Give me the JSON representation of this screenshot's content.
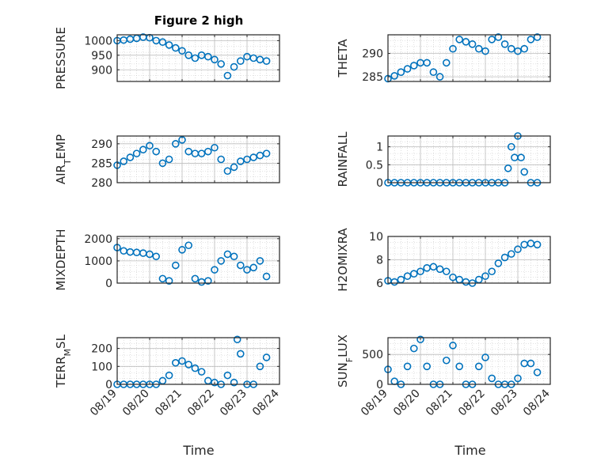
{
  "figure": {
    "title": "Figure 2 high",
    "x_axis_label": "Time",
    "x_tick_labels": [
      "08/19",
      "08/20",
      "08/21",
      "08/22",
      "08/23",
      "08/24"
    ]
  },
  "colors": {
    "marker": "#0072BD",
    "axis": "#262626",
    "grid": "#c8c8c8"
  },
  "chart_data": [
    {
      "type": "scatter",
      "ylabel": "PRESSURE",
      "xlim": [
        0,
        5
      ],
      "ylim": [
        860,
        1020
      ],
      "yticks": [
        900,
        950,
        1000
      ],
      "grid": true,
      "title": "Figure 2 high",
      "x_tick_labels_visible": false,
      "x": [
        0.0,
        0.2,
        0.4,
        0.6,
        0.8,
        1.0,
        1.2,
        1.4,
        1.6,
        1.8,
        2.0,
        2.2,
        2.4,
        2.6,
        2.8,
        3.0,
        3.2,
        3.4,
        3.6,
        3.8,
        4.0,
        4.2,
        4.4,
        4.6
      ],
      "y": [
        1000,
        1002,
        1005,
        1008,
        1012,
        1010,
        1000,
        995,
        985,
        975,
        965,
        950,
        940,
        950,
        945,
        935,
        920,
        880,
        910,
        930,
        945,
        940,
        935,
        930
      ]
    },
    {
      "type": "scatter",
      "ylabel": "THETA",
      "xlim": [
        0,
        5
      ],
      "ylim": [
        284,
        294
      ],
      "yticks": [
        285,
        290
      ],
      "grid": true,
      "x_tick_labels_visible": false,
      "x": [
        0.0,
        0.2,
        0.4,
        0.6,
        0.8,
        1.0,
        1.2,
        1.4,
        1.6,
        1.8,
        2.0,
        2.2,
        2.4,
        2.6,
        2.8,
        3.0,
        3.2,
        3.4,
        3.6,
        3.8,
        4.0,
        4.2,
        4.4,
        4.6
      ],
      "y": [
        284.6,
        285.2,
        286,
        286.7,
        287.4,
        288,
        288,
        286,
        285,
        288,
        291,
        293,
        292.5,
        292,
        291,
        290.5,
        293,
        293.5,
        292,
        291,
        290.5,
        291,
        293,
        293.5
      ]
    },
    {
      "type": "scatter",
      "ylabel": "AIR_TEMP",
      "xlim": [
        0,
        5
      ],
      "ylim": [
        280,
        292
      ],
      "yticks": [
        280,
        285,
        290
      ],
      "grid": true,
      "x_tick_labels_visible": false,
      "x": [
        0.0,
        0.2,
        0.4,
        0.6,
        0.8,
        1.0,
        1.2,
        1.4,
        1.6,
        1.8,
        2.0,
        2.2,
        2.4,
        2.6,
        2.8,
        3.0,
        3.2,
        3.4,
        3.6,
        3.8,
        4.0,
        4.2,
        4.4,
        4.6
      ],
      "y": [
        284.5,
        285.5,
        286.5,
        287.5,
        288.5,
        289.5,
        288,
        285,
        286,
        290,
        291,
        288,
        287.5,
        287.5,
        288,
        289,
        286,
        283,
        284,
        285.5,
        286,
        286.5,
        287,
        287.5
      ]
    },
    {
      "type": "scatter",
      "ylabel": "RAINFALL",
      "xlim": [
        0,
        5
      ],
      "ylim": [
        0,
        1.3
      ],
      "yticks": [
        0,
        0.5,
        1
      ],
      "grid": true,
      "x_tick_labels_visible": false,
      "x": [
        0.0,
        0.2,
        0.4,
        0.6,
        0.8,
        1.0,
        1.2,
        1.4,
        1.6,
        1.8,
        2.0,
        2.2,
        2.4,
        2.6,
        2.8,
        3.0,
        3.2,
        3.4,
        3.6,
        3.7,
        3.8,
        3.9,
        4.0,
        4.1,
        4.2,
        4.4,
        4.6
      ],
      "y": [
        0,
        0,
        0,
        0,
        0,
        0,
        0,
        0,
        0,
        0,
        0,
        0,
        0,
        0,
        0,
        0,
        0,
        0,
        0,
        0.4,
        1,
        0.7,
        1.3,
        0.7,
        0.3,
        0,
        0
      ]
    },
    {
      "type": "scatter",
      "ylabel": "MIXDEPTH",
      "xlim": [
        0,
        5
      ],
      "ylim": [
        0,
        2100
      ],
      "yticks": [
        0,
        1000,
        2000
      ],
      "grid": true,
      "x_tick_labels_visible": false,
      "x": [
        0.0,
        0.2,
        0.4,
        0.6,
        0.8,
        1.0,
        1.2,
        1.4,
        1.6,
        1.8,
        2.0,
        2.2,
        2.4,
        2.6,
        2.8,
        3.0,
        3.2,
        3.4,
        3.6,
        3.8,
        4.0,
        4.2,
        4.4,
        4.6
      ],
      "y": [
        1600,
        1450,
        1400,
        1380,
        1350,
        1300,
        1200,
        200,
        100,
        800,
        1500,
        1700,
        200,
        50,
        100,
        600,
        1000,
        1300,
        1200,
        800,
        600,
        700,
        1000,
        300
      ]
    },
    {
      "type": "scatter",
      "ylabel": "H2OMIXRA",
      "xlim": [
        0,
        5
      ],
      "ylim": [
        6,
        10
      ],
      "yticks": [
        6,
        8,
        10
      ],
      "grid": true,
      "x_tick_labels_visible": false,
      "x": [
        0.0,
        0.2,
        0.4,
        0.6,
        0.8,
        1.0,
        1.2,
        1.4,
        1.6,
        1.8,
        2.0,
        2.2,
        2.4,
        2.6,
        2.8,
        3.0,
        3.2,
        3.4,
        3.6,
        3.8,
        4.0,
        4.2,
        4.4,
        4.6
      ],
      "y": [
        6.2,
        6.1,
        6.3,
        6.6,
        6.8,
        7,
        7.3,
        7.4,
        7.2,
        7,
        6.5,
        6.3,
        6.1,
        6,
        6.3,
        6.6,
        7,
        7.7,
        8.2,
        8.5,
        8.9,
        9.3,
        9.4,
        9.3
      ]
    },
    {
      "type": "scatter",
      "ylabel": "TERR_MSL",
      "xlim": [
        0,
        5
      ],
      "ylim": [
        0,
        260
      ],
      "yticks": [
        0,
        100,
        200
      ],
      "grid": true,
      "x_tick_labels_visible": true,
      "x": [
        0.0,
        0.2,
        0.4,
        0.6,
        0.8,
        1.0,
        1.2,
        1.4,
        1.6,
        1.8,
        2.0,
        2.2,
        2.4,
        2.6,
        2.8,
        3.0,
        3.2,
        3.4,
        3.6,
        3.7,
        3.8,
        4.0,
        4.2,
        4.4,
        4.6
      ],
      "y": [
        0,
        0,
        0,
        0,
        0,
        0,
        0,
        20,
        50,
        120,
        130,
        110,
        90,
        70,
        20,
        10,
        0,
        50,
        10,
        250,
        170,
        0,
        0,
        100,
        150
      ]
    },
    {
      "type": "scatter",
      "ylabel": "SUN_FLUX",
      "xlim": [
        0,
        5
      ],
      "ylim": [
        0,
        780
      ],
      "yticks": [
        0,
        500
      ],
      "grid": true,
      "x_tick_labels_visible": true,
      "x": [
        0.0,
        0.2,
        0.4,
        0.6,
        0.8,
        1.0,
        1.2,
        1.4,
        1.6,
        1.8,
        2.0,
        2.2,
        2.4,
        2.6,
        2.8,
        3.0,
        3.2,
        3.4,
        3.6,
        3.8,
        4.0,
        4.2,
        4.4,
        4.6
      ],
      "y": [
        250,
        50,
        0,
        300,
        600,
        750,
        300,
        0,
        0,
        400,
        650,
        300,
        0,
        0,
        300,
        450,
        100,
        0,
        0,
        0,
        100,
        350,
        350,
        200
      ]
    }
  ]
}
